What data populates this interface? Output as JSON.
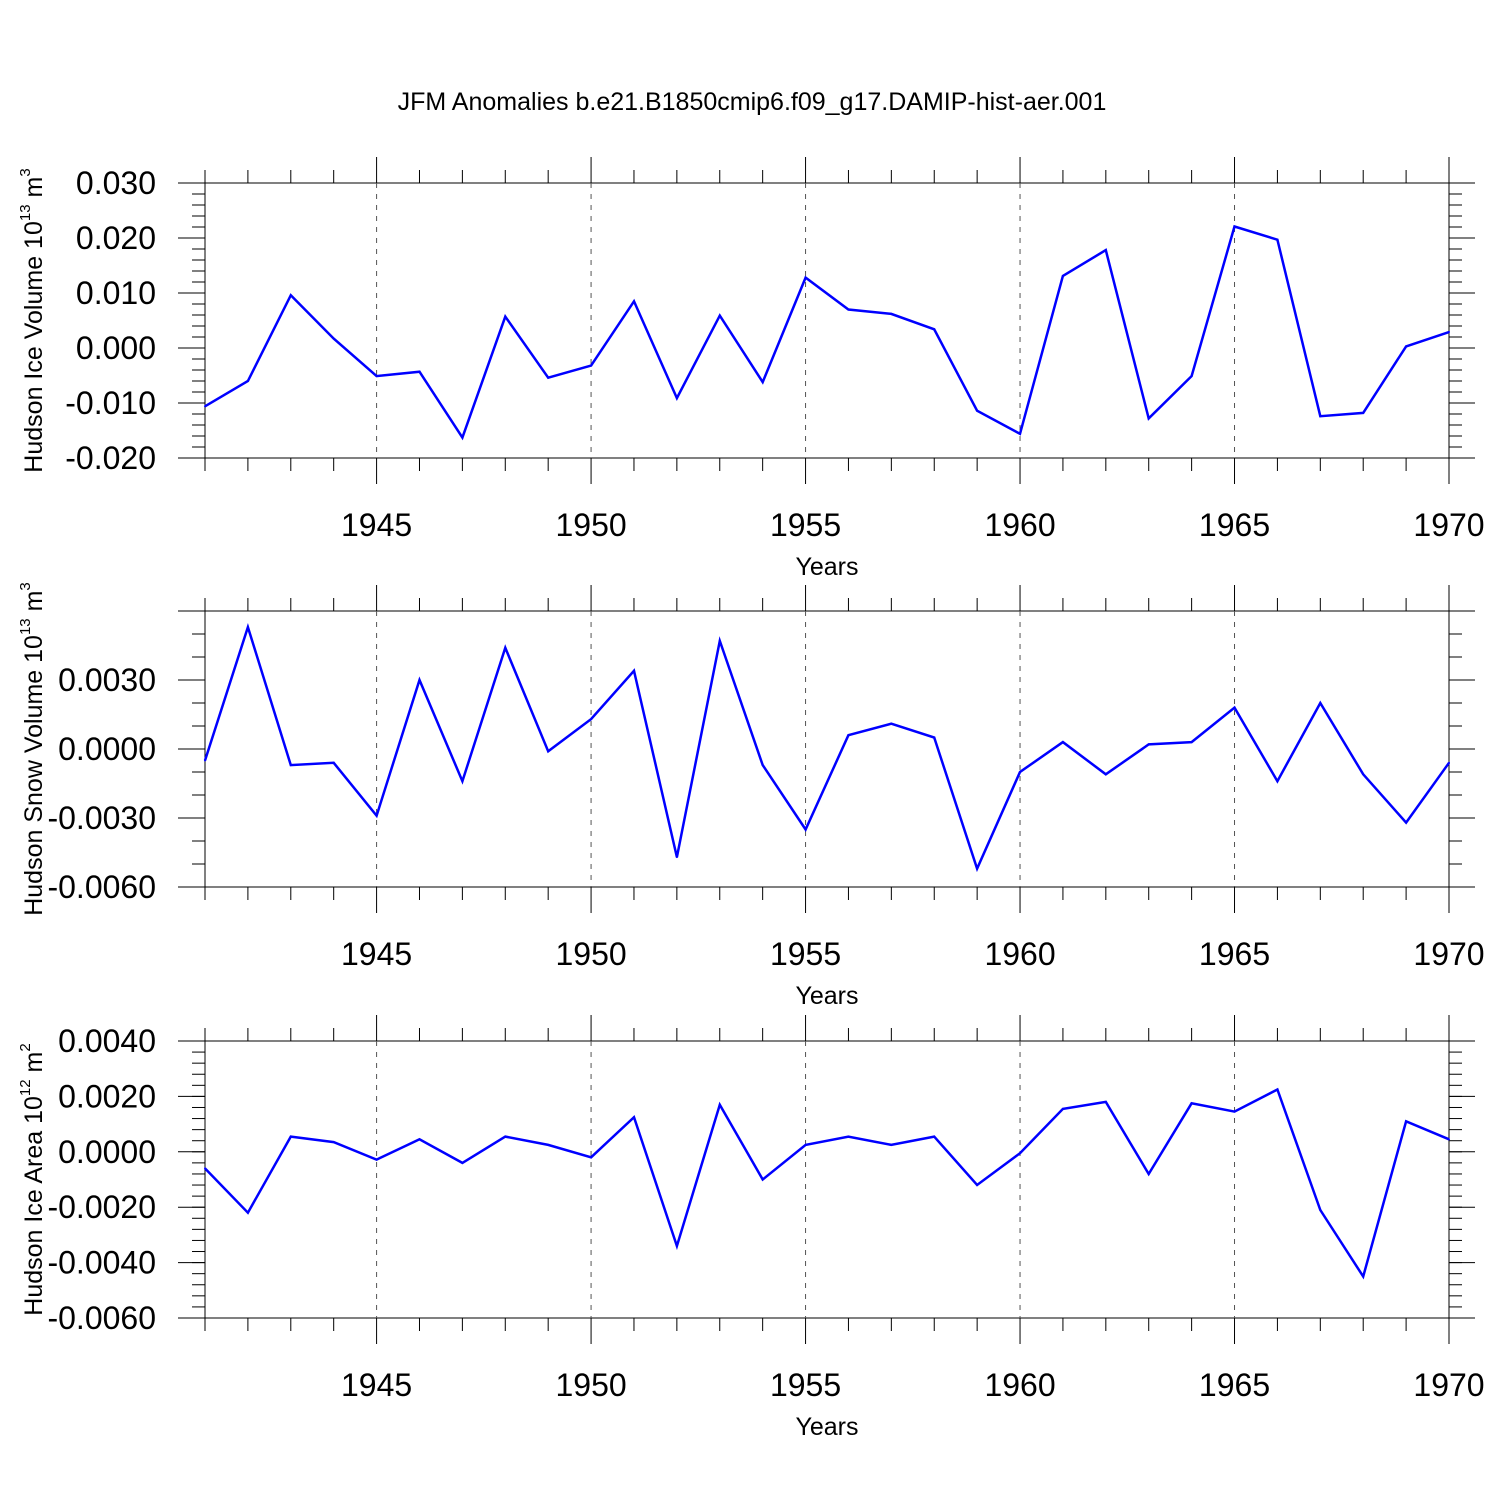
{
  "title": "JFM Anomalies b.e21.B1850cmip6.f09_g17.DAMIP-hist-aer.001",
  "colors": {
    "line": "#0000ff",
    "axis": "#000000",
    "grid": "#555555"
  },
  "chart_data": [
    {
      "type": "line",
      "ylabel": "Hudson Ice Volume 10",
      "ylabel_exp": "13",
      "ylabel_unit": " m",
      "ylabel_unit_exp": "3",
      "xlabel": "Years",
      "xlim": [
        1941,
        1970
      ],
      "ylim": [
        -0.02,
        0.03
      ],
      "yticks": [
        -0.02,
        -0.01,
        0.0,
        0.01,
        0.02,
        0.03
      ],
      "ytick_labels": [
        "-0.020",
        "-0.010",
        "0.000",
        "0.010",
        "0.020",
        "0.030"
      ],
      "yminor_step": 0.002,
      "xticks": [
        1945,
        1950,
        1955,
        1960,
        1965,
        1970
      ],
      "xtick_labels": [
        "1945",
        "1950",
        "1955",
        "1960",
        "1965",
        "1970"
      ],
      "x": [
        1941,
        1942,
        1943,
        1944,
        1945,
        1946,
        1947,
        1948,
        1949,
        1950,
        1951,
        1952,
        1953,
        1954,
        1955,
        1956,
        1957,
        1958,
        1959,
        1960,
        1961,
        1962,
        1963,
        1964,
        1965,
        1966,
        1967,
        1968,
        1969,
        1970
      ],
      "series": [
        {
          "name": "Hudson Ice Volume",
          "values": [
            -0.0106,
            -0.006,
            0.0096,
            0.0017,
            -0.0051,
            -0.0043,
            -0.0163,
            0.0057,
            -0.0054,
            -0.0032,
            0.0085,
            -0.0091,
            0.0059,
            -0.0062,
            0.0128,
            0.007,
            0.0062,
            0.0034,
            -0.0114,
            -0.0156,
            0.0131,
            0.0178,
            -0.0128,
            -0.0051,
            0.0221,
            0.0197,
            -0.0124,
            -0.0118,
            0.0003,
            0.0029
          ]
        }
      ]
    },
    {
      "type": "line",
      "ylabel": "Hudson Snow Volume 10",
      "ylabel_exp": "13",
      "ylabel_unit": " m",
      "ylabel_unit_exp": "3",
      "xlabel": "Years",
      "xlim": [
        1941,
        1970
      ],
      "ylim": [
        -0.006,
        0.006
      ],
      "yticks": [
        -0.006,
        -0.003,
        0.0,
        0.003
      ],
      "ytick_labels": [
        "-0.0060",
        "-0.0030",
        "0.0000",
        "0.0030"
      ],
      "yminor_step": 0.001,
      "xticks": [
        1945,
        1950,
        1955,
        1960,
        1965,
        1970
      ],
      "xtick_labels": [
        "1945",
        "1950",
        "1955",
        "1960",
        "1965",
        "1970"
      ],
      "x": [
        1941,
        1942,
        1943,
        1944,
        1945,
        1946,
        1947,
        1948,
        1949,
        1950,
        1951,
        1952,
        1953,
        1954,
        1955,
        1956,
        1957,
        1958,
        1959,
        1960,
        1961,
        1962,
        1963,
        1964,
        1965,
        1966,
        1967,
        1968,
        1969,
        1970
      ],
      "series": [
        {
          "name": "Hudson Snow Volume",
          "values": [
            -0.0005,
            0.0053,
            -0.0007,
            -0.0006,
            -0.0029,
            0.003,
            -0.0014,
            0.0044,
            -0.0001,
            0.0013,
            0.0034,
            -0.0047,
            0.0047,
            -0.0007,
            -0.0035,
            0.0006,
            0.0011,
            0.0005,
            -0.0052,
            -0.001,
            0.0003,
            -0.0011,
            0.0002,
            0.0003,
            0.0018,
            -0.0014,
            0.002,
            -0.0011,
            -0.0032,
            -0.0006
          ]
        }
      ]
    },
    {
      "type": "line",
      "ylabel": "Hudson Ice Area 10",
      "ylabel_exp": "12",
      "ylabel_unit": " m",
      "ylabel_unit_exp": "2",
      "xlabel": "Years",
      "xlim": [
        1941,
        1970
      ],
      "ylim": [
        -0.006,
        0.004
      ],
      "yticks": [
        -0.006,
        -0.004,
        -0.002,
        0.0,
        0.002,
        0.004
      ],
      "ytick_labels": [
        "-0.0060",
        "-0.0040",
        "-0.0020",
        "0.0000",
        "0.0020",
        "0.0040"
      ],
      "yminor_step": 0.0004,
      "xticks": [
        1945,
        1950,
        1955,
        1960,
        1965,
        1970
      ],
      "xtick_labels": [
        "1945",
        "1950",
        "1955",
        "1960",
        "1965",
        "1970"
      ],
      "x": [
        1941,
        1942,
        1943,
        1944,
        1945,
        1946,
        1947,
        1948,
        1949,
        1950,
        1951,
        1952,
        1953,
        1954,
        1955,
        1956,
        1957,
        1958,
        1959,
        1960,
        1961,
        1962,
        1963,
        1964,
        1965,
        1966,
        1967,
        1968,
        1969,
        1970
      ],
      "series": [
        {
          "name": "Hudson Ice Area",
          "values": [
            -0.0006,
            -0.0022,
            0.00055,
            0.00035,
            -0.00028,
            0.00045,
            -0.0004,
            0.00055,
            0.00025,
            -0.0002,
            0.00125,
            -0.0034,
            0.0017,
            -0.001,
            0.00025,
            0.00055,
            0.00025,
            0.00055,
            -0.0012,
            -5e-05,
            0.00155,
            0.0018,
            -0.0008,
            0.00175,
            0.00145,
            0.00225,
            -0.0021,
            -0.0045,
            0.0011,
            0.00045
          ]
        }
      ]
    }
  ]
}
